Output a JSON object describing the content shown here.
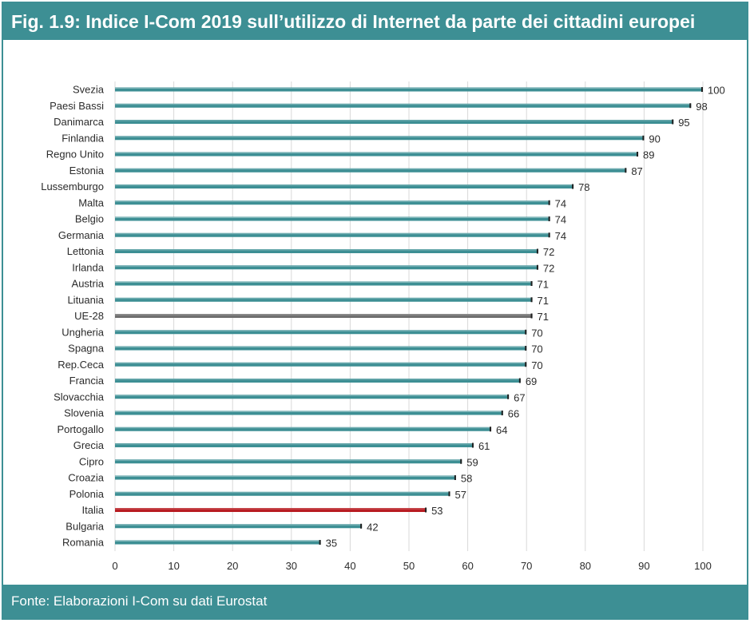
{
  "header": {
    "title": "Fig. 1.9: Indice I-Com 2019 sull’utilizzo di Internet da parte dei cittadini europei"
  },
  "footer": {
    "source": "Fonte: Elaborazioni I-Com su dati Eurostat"
  },
  "colors": {
    "frame": "#3d8f94",
    "bar_default": "#3d8f94",
    "bar_eu": "#6f6f6f",
    "bar_italy": "#b81c22",
    "grid": "#d9d9d9"
  },
  "chart_data": {
    "type": "bar",
    "orientation": "horizontal",
    "title": "Indice I-Com 2019 sull’utilizzo di Internet da parte dei cittadini europei",
    "xlabel": "",
    "ylabel": "",
    "xlim": [
      0,
      100
    ],
    "xticks": [
      0,
      10,
      20,
      30,
      40,
      50,
      60,
      70,
      80,
      90,
      100
    ],
    "grid": true,
    "legend": "none",
    "categories": [
      "Svezia",
      "Paesi Bassi",
      "Danimarca",
      "Finlandia",
      "Regno Unito",
      "Estonia",
      "Lussemburgo",
      "Malta",
      "Belgio",
      "Germania",
      "Lettonia",
      "Irlanda",
      "Austria",
      "Lituania",
      "UE-28",
      "Ungheria",
      "Spagna",
      "Rep.Ceca",
      "Francia",
      "Slovacchia",
      "Slovenia",
      "Portogallo",
      "Grecia",
      "Cipro",
      "Croazia",
      "Polonia",
      "Italia",
      "Bulgaria",
      "Romania"
    ],
    "values": [
      100,
      98,
      95,
      90,
      89,
      87,
      78,
      74,
      74,
      74,
      72,
      72,
      71,
      71,
      71,
      70,
      70,
      70,
      69,
      67,
      66,
      64,
      61,
      59,
      58,
      57,
      53,
      42,
      35
    ],
    "value_labels": [
      "100",
      "98",
      "95",
      "90",
      "89",
      "87",
      "78",
      "74",
      "74",
      "74",
      "72",
      "72",
      "71",
      "71",
      "71",
      "70",
      "70",
      "70",
      "69",
      "67",
      "66",
      "64",
      "61",
      "59",
      "58",
      "57",
      "53",
      "42",
      "35"
    ],
    "highlights": {
      "UE-28": "eu",
      "Italia": "italy"
    }
  }
}
